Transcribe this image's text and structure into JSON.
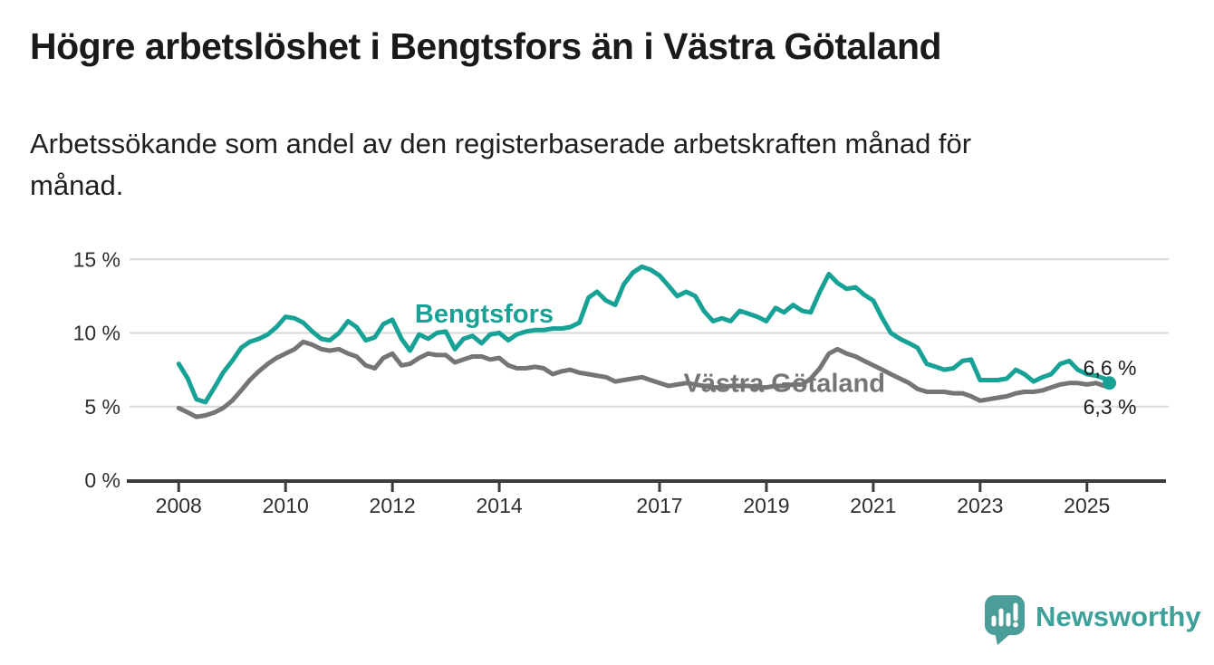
{
  "header": {
    "title": "Högre arbetslöshet i Bengtsfors än i Västra Götaland",
    "subtitle": "Arbetssökande som andel av den registerbaserade arbetskraften månad för\nmånad."
  },
  "footer": {
    "brand": "Newsworthy",
    "logo_icon": "newsworthy-bar-chart-bubble-icon"
  },
  "colors": {
    "bengtsfors": "#17a295",
    "vastra_gotaland": "#757575",
    "axis_text": "#2e2e2e",
    "axis_line": "#3c3c3c",
    "gridline": "#d9d9d9",
    "value_label": "#1d1d1d",
    "logo_teal": "#4a9d98",
    "logo_text_teal": "#3da19a",
    "background": "#ffffff"
  },
  "chart_data": {
    "type": "line",
    "title": "Högre arbetslöshet i Bengtsfors än i Västra Götaland",
    "xlabel": "",
    "ylabel": "",
    "x_unit": "year_decimal",
    "xlim": [
      2007.08,
      2026.53
    ],
    "ylim": [
      0,
      16
    ],
    "grid": "horizontal",
    "legend_position": "inline-labels",
    "yticks": [
      {
        "value": 0,
        "label": "0 %"
      },
      {
        "value": 5,
        "label": "5 %"
      },
      {
        "value": 10,
        "label": "10 %"
      },
      {
        "value": 15,
        "label": "15 %"
      }
    ],
    "grid_yticks": [
      5,
      10,
      15
    ],
    "xticks": [
      {
        "value": 2008,
        "label": "2008"
      },
      {
        "value": 2010,
        "label": "2010"
      },
      {
        "value": 2012,
        "label": "2012"
      },
      {
        "value": 2014,
        "label": "2014"
      },
      {
        "value": 2017,
        "label": "2017"
      },
      {
        "value": 2019,
        "label": "2019"
      },
      {
        "value": 2021,
        "label": "2021"
      },
      {
        "value": 2023,
        "label": "2023"
      },
      {
        "value": 2025,
        "label": "2025"
      }
    ],
    "x": [
      2008.0,
      2008.17,
      2008.33,
      2008.5,
      2008.67,
      2008.83,
      2009.0,
      2009.17,
      2009.33,
      2009.5,
      2009.67,
      2009.83,
      2010.0,
      2010.17,
      2010.33,
      2010.5,
      2010.67,
      2010.83,
      2011.0,
      2011.17,
      2011.33,
      2011.5,
      2011.67,
      2011.83,
      2012.0,
      2012.17,
      2012.33,
      2012.5,
      2012.67,
      2012.83,
      2013.0,
      2013.17,
      2013.33,
      2013.5,
      2013.67,
      2013.83,
      2014.0,
      2014.17,
      2014.33,
      2014.5,
      2014.67,
      2014.83,
      2015.0,
      2015.17,
      2015.33,
      2015.5,
      2015.67,
      2015.83,
      2016.0,
      2016.17,
      2016.33,
      2016.5,
      2016.67,
      2016.83,
      2017.0,
      2017.17,
      2017.33,
      2017.5,
      2017.67,
      2017.83,
      2018.0,
      2018.17,
      2018.33,
      2018.5,
      2018.67,
      2018.83,
      2019.0,
      2019.17,
      2019.33,
      2019.5,
      2019.67,
      2019.83,
      2020.0,
      2020.17,
      2020.33,
      2020.5,
      2020.67,
      2020.83,
      2021.0,
      2021.17,
      2021.33,
      2021.5,
      2021.67,
      2021.83,
      2022.0,
      2022.17,
      2022.33,
      2022.5,
      2022.67,
      2022.83,
      2023.0,
      2023.17,
      2023.33,
      2023.5,
      2023.67,
      2023.83,
      2024.0,
      2024.17,
      2024.33,
      2024.5,
      2024.67,
      2024.83,
      2025.0,
      2025.17,
      2025.33,
      2025.42
    ],
    "series": [
      {
        "name": "Bengtsfors",
        "color": "#17a295",
        "end_dot": true,
        "end_value_label": "6,6 %",
        "values": [
          7.9,
          6.9,
          5.5,
          5.3,
          6.3,
          7.3,
          8.1,
          9.0,
          9.4,
          9.6,
          9.9,
          10.4,
          11.1,
          11.0,
          10.7,
          10.1,
          9.6,
          9.5,
          10.0,
          10.8,
          10.4,
          9.5,
          9.7,
          10.6,
          10.9,
          9.6,
          8.8,
          9.9,
          9.6,
          10.0,
          10.1,
          8.9,
          9.6,
          9.8,
          9.3,
          9.9,
          10.0,
          9.5,
          9.9,
          10.1,
          10.2,
          10.2,
          10.3,
          10.3,
          10.4,
          10.7,
          12.4,
          12.8,
          12.2,
          11.9,
          13.3,
          14.1,
          14.5,
          14.3,
          13.9,
          13.2,
          12.5,
          12.8,
          12.5,
          11.5,
          10.8,
          11.0,
          10.8,
          11.5,
          11.3,
          11.1,
          10.8,
          11.7,
          11.4,
          11.9,
          11.5,
          11.4,
          12.8,
          14.0,
          13.4,
          13.0,
          13.1,
          12.6,
          12.2,
          11.0,
          10.0,
          9.6,
          9.3,
          9.0,
          7.9,
          7.7,
          7.5,
          7.6,
          8.1,
          8.2,
          6.8,
          6.8,
          6.8,
          6.9,
          7.5,
          7.2,
          6.7,
          7.0,
          7.2,
          7.9,
          8.1,
          7.5,
          7.2,
          7.1,
          6.9,
          6.6
        ]
      },
      {
        "name": "Västra Götaland",
        "color": "#757575",
        "end_dot": false,
        "end_value_label": "6,3 %",
        "values": [
          4.9,
          4.6,
          4.3,
          4.4,
          4.6,
          4.9,
          5.4,
          6.1,
          6.8,
          7.4,
          7.9,
          8.3,
          8.6,
          8.9,
          9.4,
          9.2,
          8.9,
          8.8,
          8.9,
          8.6,
          8.4,
          7.8,
          7.6,
          8.3,
          8.6,
          7.8,
          7.9,
          8.3,
          8.6,
          8.5,
          8.5,
          8.0,
          8.2,
          8.4,
          8.4,
          8.2,
          8.3,
          7.8,
          7.6,
          7.6,
          7.7,
          7.6,
          7.2,
          7.4,
          7.5,
          7.3,
          7.2,
          7.1,
          7.0,
          6.7,
          6.8,
          6.9,
          7.0,
          6.8,
          6.6,
          6.4,
          6.5,
          6.6,
          6.5,
          6.4,
          6.3,
          6.3,
          6.4,
          6.4,
          6.4,
          6.3,
          6.3,
          6.4,
          6.4,
          6.5,
          6.5,
          6.9,
          7.6,
          8.6,
          8.9,
          8.6,
          8.4,
          8.1,
          7.8,
          7.5,
          7.2,
          6.9,
          6.6,
          6.2,
          6.0,
          6.0,
          6.0,
          5.9,
          5.9,
          5.7,
          5.4,
          5.5,
          5.6,
          5.7,
          5.9,
          6.0,
          6.0,
          6.1,
          6.3,
          6.5,
          6.6,
          6.6,
          6.5,
          6.6,
          6.4,
          6.3
        ]
      }
    ],
    "annotations": [
      {
        "name": "bengtsfors-series-label",
        "text": "Bengtsfors",
        "x": 2012.42,
        "y": 10.72,
        "color": "#17a295",
        "weight": "bold",
        "size": 29,
        "anchor": "start"
      },
      {
        "name": "vastra-gotaland-series-label",
        "text": "Västra Götaland",
        "x": 2017.45,
        "y": 6.0,
        "color": "#757575",
        "weight": "bold",
        "size": 29,
        "anchor": "start"
      },
      {
        "name": "bengtsfors-end-value-label",
        "text": "6,6 %",
        "x": 2024.93,
        "y": 7.15,
        "color": "#1d1d1d",
        "weight": "normal",
        "size": 23,
        "anchor": "start"
      },
      {
        "name": "vastra-gotaland-end-value-label",
        "text": "6,3 %",
        "x": 2024.93,
        "y": 4.5,
        "color": "#1d1d1d",
        "weight": "normal",
        "size": 23,
        "anchor": "start"
      }
    ]
  }
}
